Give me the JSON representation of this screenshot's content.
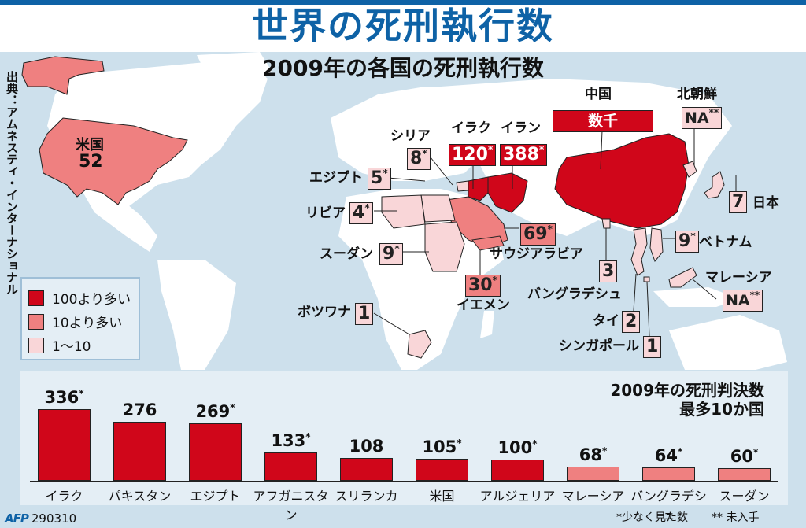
{
  "title": "世界の死刑執行数",
  "subtitle": "2009年の各国の死刑執行数",
  "source": "出典：アムネスティ・インターナショナル",
  "colors": {
    "brand_blue": "#0e62a6",
    "sea": "#cde0ec",
    "land": "#ffffff",
    "high": "#d0061a",
    "mid": "#ef8080",
    "low": "#f9d6d8",
    "panel": "#e4eef5"
  },
  "legend": [
    {
      "label": "100より多い",
      "color": "#d0061a"
    },
    {
      "label": "10より多い",
      "color": "#ef8080"
    },
    {
      "label": "1〜10",
      "color": "#f9d6d8"
    }
  ],
  "map_labels": {
    "usa": {
      "name": "米国",
      "value": "52"
    },
    "syria": {
      "name": "シリア",
      "value": "8",
      "mark": "*"
    },
    "iraq": {
      "name": "イラク",
      "value": "120",
      "mark": "*"
    },
    "iran": {
      "name": "イラン",
      "value": "388",
      "mark": "*"
    },
    "china": {
      "name": "中国",
      "value": "数千"
    },
    "north_korea": {
      "name": "北朝鮮",
      "value": "NA",
      "mark": "**"
    },
    "egypt": {
      "name": "エジプト",
      "value": "5",
      "mark": "*"
    },
    "libya": {
      "name": "リビア",
      "value": "4",
      "mark": "*"
    },
    "sudan": {
      "name": "スーダン",
      "value": "9",
      "mark": "*"
    },
    "saudi": {
      "name": "サウジアラビア",
      "value": "69",
      "mark": "*"
    },
    "yemen": {
      "name": "イエメン",
      "value": "30",
      "mark": "*"
    },
    "botswana": {
      "name": "ボツワナ",
      "value": "1"
    },
    "bangladesh": {
      "name": "バングラデシュ",
      "value": "3"
    },
    "thailand": {
      "name": "タイ",
      "value": "2"
    },
    "singapore": {
      "name": "シンガポール",
      "value": "1"
    },
    "vietnam": {
      "name": "ベトナム",
      "value": "9",
      "mark": "*"
    },
    "malaysia": {
      "name": "マレーシア",
      "value": "NA",
      "mark": "**"
    },
    "japan": {
      "name": "日本",
      "value": "7"
    }
  },
  "chart_data": {
    "type": "bar",
    "title": "2009年の死刑判決数 最多10か国",
    "title_lines": [
      "2009年の死刑判決数",
      "最多10か国"
    ],
    "categories": [
      "イラク",
      "パキスタン",
      "エジプト",
      "アフガニスタン",
      "スリランカ",
      "米国",
      "アルジェリア",
      "マレーシア",
      "バングラデシュ",
      "スーダン"
    ],
    "values": [
      336,
      276,
      269,
      133,
      108,
      105,
      100,
      68,
      64,
      60
    ],
    "value_labels": [
      "336",
      "276",
      "269",
      "133",
      "108",
      "105",
      "100",
      "68",
      "64",
      "60"
    ],
    "marks": [
      "*",
      "",
      "*",
      "*",
      "",
      "*",
      "*",
      "*",
      "*",
      "*"
    ],
    "bar_colors": [
      "#d0061a",
      "#d0061a",
      "#d0061a",
      "#d0061a",
      "#d0061a",
      "#d0061a",
      "#d0061a",
      "#ef8080",
      "#ef8080",
      "#ef8080"
    ],
    "xlabel": "",
    "ylabel": "",
    "ylim": [
      0,
      336
    ],
    "grid": false,
    "legend_position": "none"
  },
  "footer": {
    "logo": "AFP",
    "date": "290310",
    "note_estimate": "*少なく見た数",
    "note_na": "** 未入手"
  }
}
